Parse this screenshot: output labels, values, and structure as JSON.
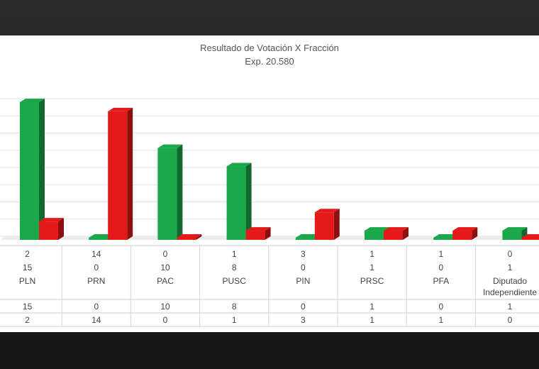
{
  "chart_data": {
    "type": "bar",
    "title": "Resultado de Votación X Fracción",
    "subtitle": "Exp. 20.580",
    "categories": [
      "PLN",
      "PRN",
      "PAC",
      "PUSC",
      "PIN",
      "PRSC",
      "PFA",
      "Diputado Independiente"
    ],
    "series": [
      {
        "values": [
          15,
          0,
          10,
          8,
          0,
          1,
          0,
          1
        ],
        "color": "#1aa84a"
      },
      {
        "values": [
          2,
          14,
          0,
          1,
          3,
          1,
          1,
          0
        ],
        "color": "#e41a1a"
      }
    ],
    "ylim": [
      0,
      15
    ],
    "grid": true
  }
}
